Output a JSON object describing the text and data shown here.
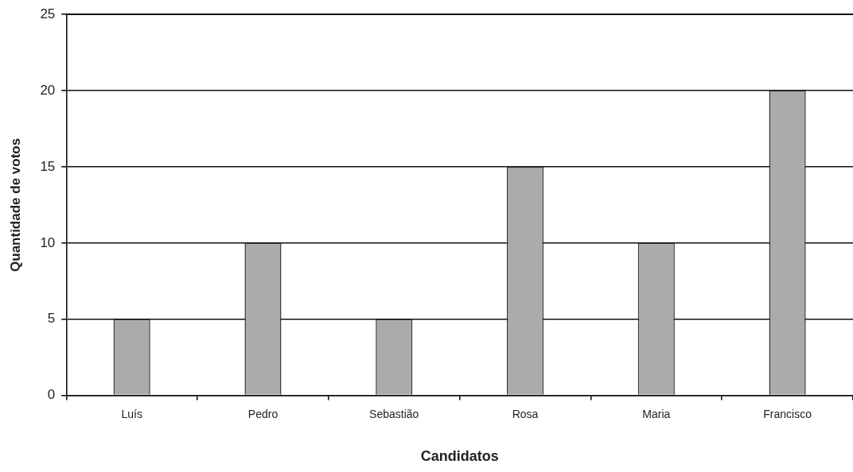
{
  "chart_data": {
    "type": "bar",
    "xlabel": "Candidatos",
    "ylabel": "Quantidade de votos",
    "categories": [
      "Luís",
      "Pedro",
      "Sebastião",
      "Rosa",
      "Maria",
      "Francisco"
    ],
    "values": [
      5,
      10,
      5,
      15,
      10,
      20
    ],
    "color": "#ababab",
    "ylim": [
      0,
      25
    ],
    "yticks": [
      0,
      5,
      10,
      15,
      20,
      25
    ],
    "grid": "y",
    "legend": false
  }
}
